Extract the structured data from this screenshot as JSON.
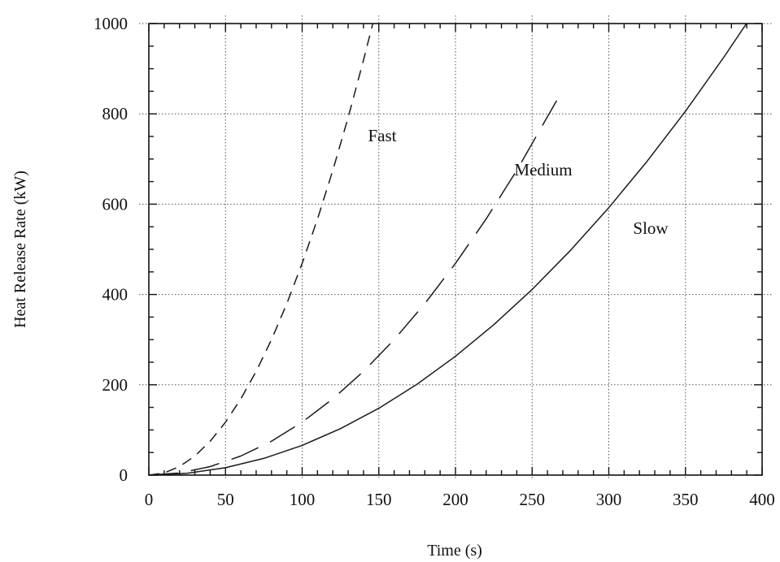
{
  "chart_data": {
    "type": "line",
    "title": "",
    "xlabel": "Time (s)",
    "ylabel": "Heat Release Rate (kW)",
    "xlim": [
      0,
      400
    ],
    "ylim": [
      0,
      1000
    ],
    "xticks": [
      0,
      50,
      100,
      150,
      200,
      250,
      300,
      350,
      400
    ],
    "yticks": [
      0,
      200,
      400,
      600,
      800,
      1000
    ],
    "grid": true,
    "legend": "none",
    "series": [
      {
        "name": "Fast",
        "style": "short-dash",
        "x": [
          0,
          10,
          20,
          30,
          40,
          50,
          60,
          70,
          80,
          90,
          100,
          110,
          120,
          130,
          140,
          146
        ],
        "y": [
          0,
          4.7,
          18.8,
          42.2,
          75.0,
          117.2,
          168.8,
          229.7,
          300.0,
          379.7,
          468.8,
          567.2,
          675.0,
          792.2,
          918.8,
          998.9
        ]
      },
      {
        "name": "Medium",
        "style": "long-dash",
        "x": [
          0,
          20,
          40,
          60,
          80,
          100,
          120,
          140,
          160,
          180,
          200,
          220,
          240,
          266
        ],
        "y": [
          0,
          4.7,
          18.8,
          42.2,
          75.0,
          117.2,
          168.8,
          229.7,
          300.0,
          379.7,
          468.8,
          567.2,
          675.0,
          829.3
        ]
      },
      {
        "name": "Slow",
        "style": "solid",
        "x": [
          0,
          25,
          50,
          75,
          100,
          125,
          150,
          175,
          200,
          225,
          250,
          275,
          300,
          325,
          350,
          375,
          390
        ],
        "y": [
          0,
          4.1,
          16.4,
          37.0,
          65.8,
          102.8,
          148.0,
          201.5,
          263.2,
          333.1,
          411.2,
          497.6,
          592.2,
          695.0,
          806.0,
          925.3,
          1000.8
        ]
      }
    ],
    "annotations": [
      "Fast",
      "Medium",
      "Slow"
    ],
    "colors": {
      "line": "#1a1a1a",
      "grid": "#555555"
    }
  }
}
